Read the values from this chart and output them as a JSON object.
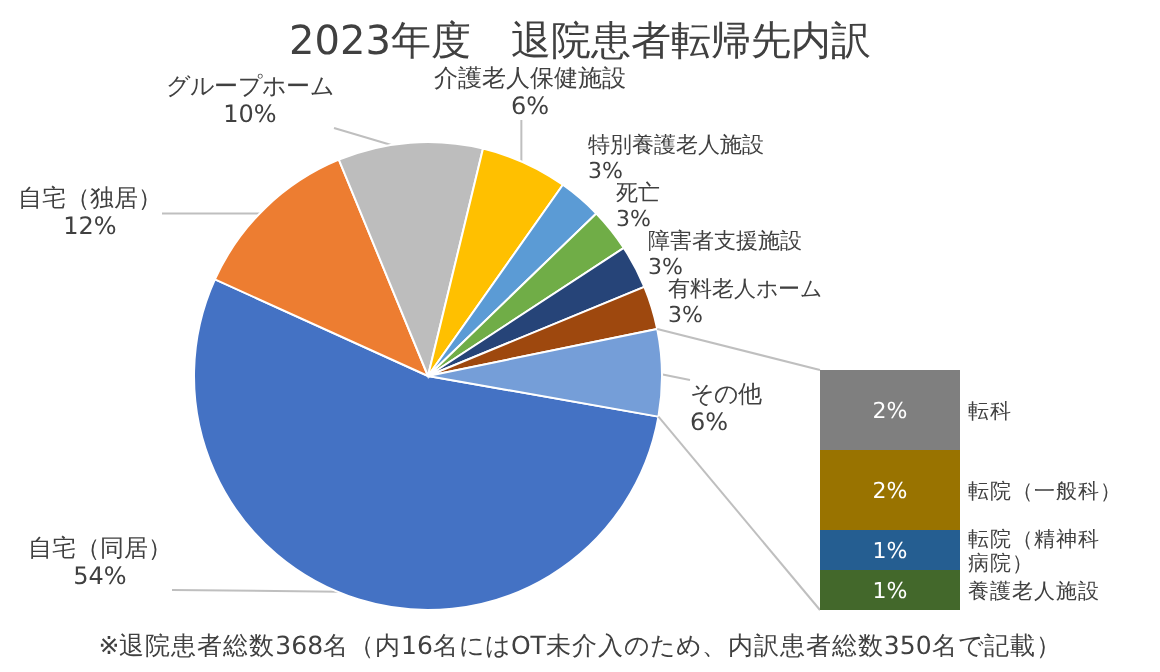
{
  "chart_data": [
    {
      "type": "pie",
      "title": "2023年度　退院患者転帰先内訳",
      "categories": [
        "自宅（同居）",
        "自宅（独居）",
        "グループホーム",
        "介護老人保健施設",
        "特別養護老人施設",
        "死亡",
        "障害者支援施設",
        "有料老人ホーム",
        "その他"
      ],
      "values": [
        54,
        12,
        10,
        6,
        3,
        3,
        3,
        3,
        6
      ],
      "value_labels": [
        "54%",
        "12%",
        "10%",
        "6%",
        "3%",
        "3%",
        "3%",
        "3%",
        "6%"
      ],
      "colors": [
        "#4472c4",
        "#ed7d31",
        "#bdbdbd",
        "#ffc000",
        "#5b9bd5",
        "#70ad47",
        "#264478",
        "#9e480e",
        "#759ed8"
      ],
      "annotations": [
        "※退院患者総数368名（内16名にはOT未介入のため、内訳患者総数350名で記載）"
      ]
    },
    {
      "type": "bar",
      "stacked": true,
      "categories": [
        null
      ],
      "series": [
        {
          "name": "養護老人施設",
          "color": "#43682b",
          "values": [
            1
          ],
          "value_labels": [
            "1%"
          ]
        },
        {
          "name": "転院（精神科病院）",
          "color": "#255e91",
          "values": [
            1
          ],
          "value_labels": [
            "1%"
          ]
        },
        {
          "name": "転院（一般科）",
          "color": "#997300",
          "values": [
            2
          ],
          "value_labels": [
            "2%"
          ]
        },
        {
          "name": "転科",
          "color": "#7f7f7f",
          "values": [
            2
          ],
          "value_labels": [
            "2%"
          ]
        }
      ]
    }
  ]
}
